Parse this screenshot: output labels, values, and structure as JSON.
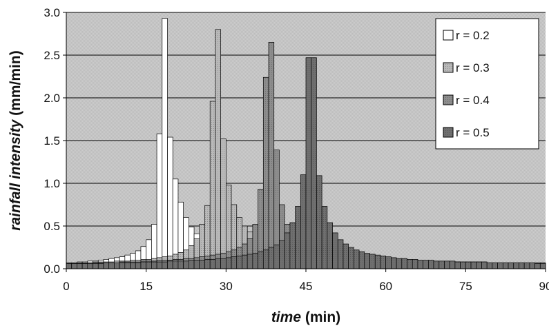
{
  "chart_data": {
    "type": "bar",
    "xlabel_italic": "time",
    "xlabel_unit": "(min)",
    "ylabel_italic": "rainfall intensity",
    "ylabel_unit": "(mm/min)",
    "xlim": [
      0,
      90
    ],
    "ylim": [
      0,
      3.0
    ],
    "x_ticks": [
      "0",
      "15",
      "30",
      "45",
      "60",
      "75",
      "90"
    ],
    "y_ticks": [
      "0.0",
      "0.5",
      "1.0",
      "1.5",
      "2.0",
      "2.5",
      "3.0"
    ],
    "grid": "horizontal",
    "legend_position": "top-right",
    "bar_width_min": 1,
    "series": [
      {
        "name": "r = 0.2",
        "color": "#ffffff",
        "pattern": "none",
        "x": [
          0,
          1,
          2,
          3,
          4,
          5,
          6,
          7,
          8,
          9,
          10,
          11,
          12,
          13,
          14,
          15,
          16,
          17,
          18,
          19,
          20,
          21,
          22,
          23,
          24,
          25,
          26,
          27,
          28,
          29,
          30,
          31,
          32,
          33,
          34,
          35,
          36,
          37,
          38,
          39,
          40,
          41,
          42,
          43,
          44,
          45,
          46,
          47,
          48,
          49,
          50,
          51,
          52,
          53,
          54,
          55,
          56,
          57,
          58,
          59,
          60,
          61,
          62,
          63,
          64,
          65,
          66,
          67,
          68,
          69,
          70,
          71,
          72,
          73,
          74,
          75,
          76,
          77,
          78,
          79,
          80,
          81,
          82,
          83,
          84,
          85,
          86,
          87,
          88,
          89
        ],
        "values": [
          0.07,
          0.07,
          0.08,
          0.08,
          0.09,
          0.09,
          0.1,
          0.11,
          0.12,
          0.13,
          0.14,
          0.16,
          0.18,
          0.21,
          0.26,
          0.34,
          0.52,
          1.58,
          2.93,
          1.54,
          1.05,
          0.78,
          0.6,
          0.49,
          0.41,
          0.35,
          0.31,
          0.28,
          0.25,
          0.23,
          0.21,
          0.19,
          0.18,
          0.17,
          0.16,
          0.15,
          0.14,
          0.13,
          0.13,
          0.12,
          0.12,
          0.11,
          0.11,
          0.1,
          0.1,
          0.1,
          0.1,
          0.09,
          0.09,
          0.09,
          0.09,
          0.09,
          0.08,
          0.08,
          0.08,
          0.08,
          0.08,
          0.08,
          0.08,
          0.07,
          0.07,
          0.07,
          0.07,
          0.07,
          0.07,
          0.07,
          0.07,
          0.07,
          0.07,
          0.07,
          0.07,
          0.07,
          0.06,
          0.06,
          0.06,
          0.06,
          0.06,
          0.06,
          0.06,
          0.06,
          0.06,
          0.06,
          0.06,
          0.06,
          0.06,
          0.06,
          0.06,
          0.06,
          0.06,
          0.06
        ]
      },
      {
        "name": "r = 0.3",
        "color": "#b9b9b9",
        "pattern": "dots",
        "x": [
          0,
          1,
          2,
          3,
          4,
          5,
          6,
          7,
          8,
          9,
          10,
          11,
          12,
          13,
          14,
          15,
          16,
          17,
          18,
          19,
          20,
          21,
          22,
          23,
          24,
          25,
          26,
          27,
          28,
          29,
          30,
          31,
          32,
          33,
          34,
          35,
          36,
          37,
          38,
          39,
          40,
          41,
          42,
          43,
          44,
          45,
          46,
          47,
          48,
          49,
          50,
          51,
          52,
          53,
          54,
          55,
          56,
          57,
          58,
          59,
          60,
          61,
          62,
          63,
          64,
          65,
          66,
          67,
          68,
          69,
          70,
          71,
          72,
          73,
          74,
          75,
          76,
          77,
          78,
          79,
          80,
          81,
          82,
          83,
          84,
          85,
          86,
          87,
          88,
          89
        ],
        "values": [
          0.07,
          0.07,
          0.07,
          0.07,
          0.07,
          0.08,
          0.08,
          0.08,
          0.08,
          0.09,
          0.09,
          0.09,
          0.1,
          0.1,
          0.11,
          0.11,
          0.12,
          0.13,
          0.14,
          0.15,
          0.17,
          0.19,
          0.22,
          0.27,
          0.35,
          0.52,
          0.74,
          1.96,
          2.8,
          1.52,
          0.98,
          0.75,
          0.6,
          0.5,
          0.43,
          0.37,
          0.33,
          0.3,
          0.27,
          0.25,
          0.23,
          0.21,
          0.2,
          0.18,
          0.17,
          0.16,
          0.15,
          0.15,
          0.14,
          0.13,
          0.13,
          0.12,
          0.12,
          0.11,
          0.11,
          0.11,
          0.1,
          0.1,
          0.1,
          0.1,
          0.09,
          0.09,
          0.09,
          0.09,
          0.09,
          0.09,
          0.08,
          0.08,
          0.08,
          0.08,
          0.08,
          0.08,
          0.08,
          0.08,
          0.07,
          0.07,
          0.07,
          0.07,
          0.07,
          0.07,
          0.07,
          0.07,
          0.07,
          0.07,
          0.07,
          0.07,
          0.06,
          0.06,
          0.06,
          0.06
        ]
      },
      {
        "name": "r = 0.4",
        "color": "#8d8d8d",
        "pattern": "dots",
        "x": [
          0,
          1,
          2,
          3,
          4,
          5,
          6,
          7,
          8,
          9,
          10,
          11,
          12,
          13,
          14,
          15,
          16,
          17,
          18,
          19,
          20,
          21,
          22,
          23,
          24,
          25,
          26,
          27,
          28,
          29,
          30,
          31,
          32,
          33,
          34,
          35,
          36,
          37,
          38,
          39,
          40,
          41,
          42,
          43,
          44,
          45,
          46,
          47,
          48,
          49,
          50,
          51,
          52,
          53,
          54,
          55,
          56,
          57,
          58,
          59,
          60,
          61,
          62,
          63,
          64,
          65,
          66,
          67,
          68,
          69,
          70,
          71,
          72,
          73,
          74,
          75,
          76,
          77,
          78,
          79,
          80,
          81,
          82,
          83,
          84,
          85,
          86,
          87,
          88,
          89
        ],
        "values": [
          0.06,
          0.06,
          0.06,
          0.06,
          0.07,
          0.07,
          0.07,
          0.07,
          0.07,
          0.07,
          0.08,
          0.08,
          0.08,
          0.08,
          0.09,
          0.09,
          0.09,
          0.1,
          0.1,
          0.1,
          0.11,
          0.11,
          0.12,
          0.12,
          0.13,
          0.14,
          0.15,
          0.16,
          0.17,
          0.18,
          0.2,
          0.22,
          0.25,
          0.29,
          0.35,
          0.52,
          0.93,
          2.24,
          2.65,
          1.39,
          0.75,
          0.52,
          0.42,
          0.35,
          0.3,
          0.27,
          0.24,
          0.22,
          0.2,
          0.19,
          0.17,
          0.16,
          0.15,
          0.15,
          0.14,
          0.13,
          0.13,
          0.12,
          0.12,
          0.11,
          0.11,
          0.11,
          0.1,
          0.1,
          0.1,
          0.1,
          0.09,
          0.09,
          0.09,
          0.09,
          0.09,
          0.08,
          0.08,
          0.08,
          0.08,
          0.08,
          0.08,
          0.08,
          0.08,
          0.07,
          0.07,
          0.07,
          0.07,
          0.07,
          0.07,
          0.07,
          0.07,
          0.07,
          0.07,
          0.07
        ]
      },
      {
        "name": "r = 0.5",
        "color": "#6f6f6f",
        "pattern": "dots",
        "x": [
          0,
          1,
          2,
          3,
          4,
          5,
          6,
          7,
          8,
          9,
          10,
          11,
          12,
          13,
          14,
          15,
          16,
          17,
          18,
          19,
          20,
          21,
          22,
          23,
          24,
          25,
          26,
          27,
          28,
          29,
          30,
          31,
          32,
          33,
          34,
          35,
          36,
          37,
          38,
          39,
          40,
          41,
          42,
          43,
          44,
          45,
          46,
          47,
          48,
          49,
          50,
          51,
          52,
          53,
          54,
          55,
          56,
          57,
          58,
          59,
          60,
          61,
          62,
          63,
          64,
          65,
          66,
          67,
          68,
          69,
          70,
          71,
          72,
          73,
          74,
          75,
          76,
          77,
          78,
          79,
          80,
          81,
          82,
          83,
          84,
          85,
          86,
          87,
          88,
          89
        ],
        "values": [
          0.06,
          0.06,
          0.06,
          0.06,
          0.06,
          0.06,
          0.06,
          0.07,
          0.07,
          0.07,
          0.07,
          0.07,
          0.07,
          0.07,
          0.08,
          0.08,
          0.08,
          0.08,
          0.08,
          0.09,
          0.09,
          0.09,
          0.09,
          0.1,
          0.1,
          0.1,
          0.11,
          0.11,
          0.12,
          0.12,
          0.13,
          0.14,
          0.15,
          0.16,
          0.17,
          0.18,
          0.2,
          0.22,
          0.25,
          0.28,
          0.33,
          0.42,
          0.54,
          0.73,
          1.1,
          2.47,
          2.47,
          1.09,
          0.73,
          0.54,
          0.42,
          0.34,
          0.29,
          0.25,
          0.22,
          0.2,
          0.18,
          0.17,
          0.16,
          0.15,
          0.14,
          0.13,
          0.12,
          0.12,
          0.11,
          0.11,
          0.1,
          0.1,
          0.1,
          0.09,
          0.09,
          0.09,
          0.09,
          0.08,
          0.08,
          0.08,
          0.08,
          0.08,
          0.08,
          0.07,
          0.07,
          0.07,
          0.07,
          0.07,
          0.07,
          0.07,
          0.07,
          0.07,
          0.06,
          0.06
        ]
      }
    ]
  }
}
